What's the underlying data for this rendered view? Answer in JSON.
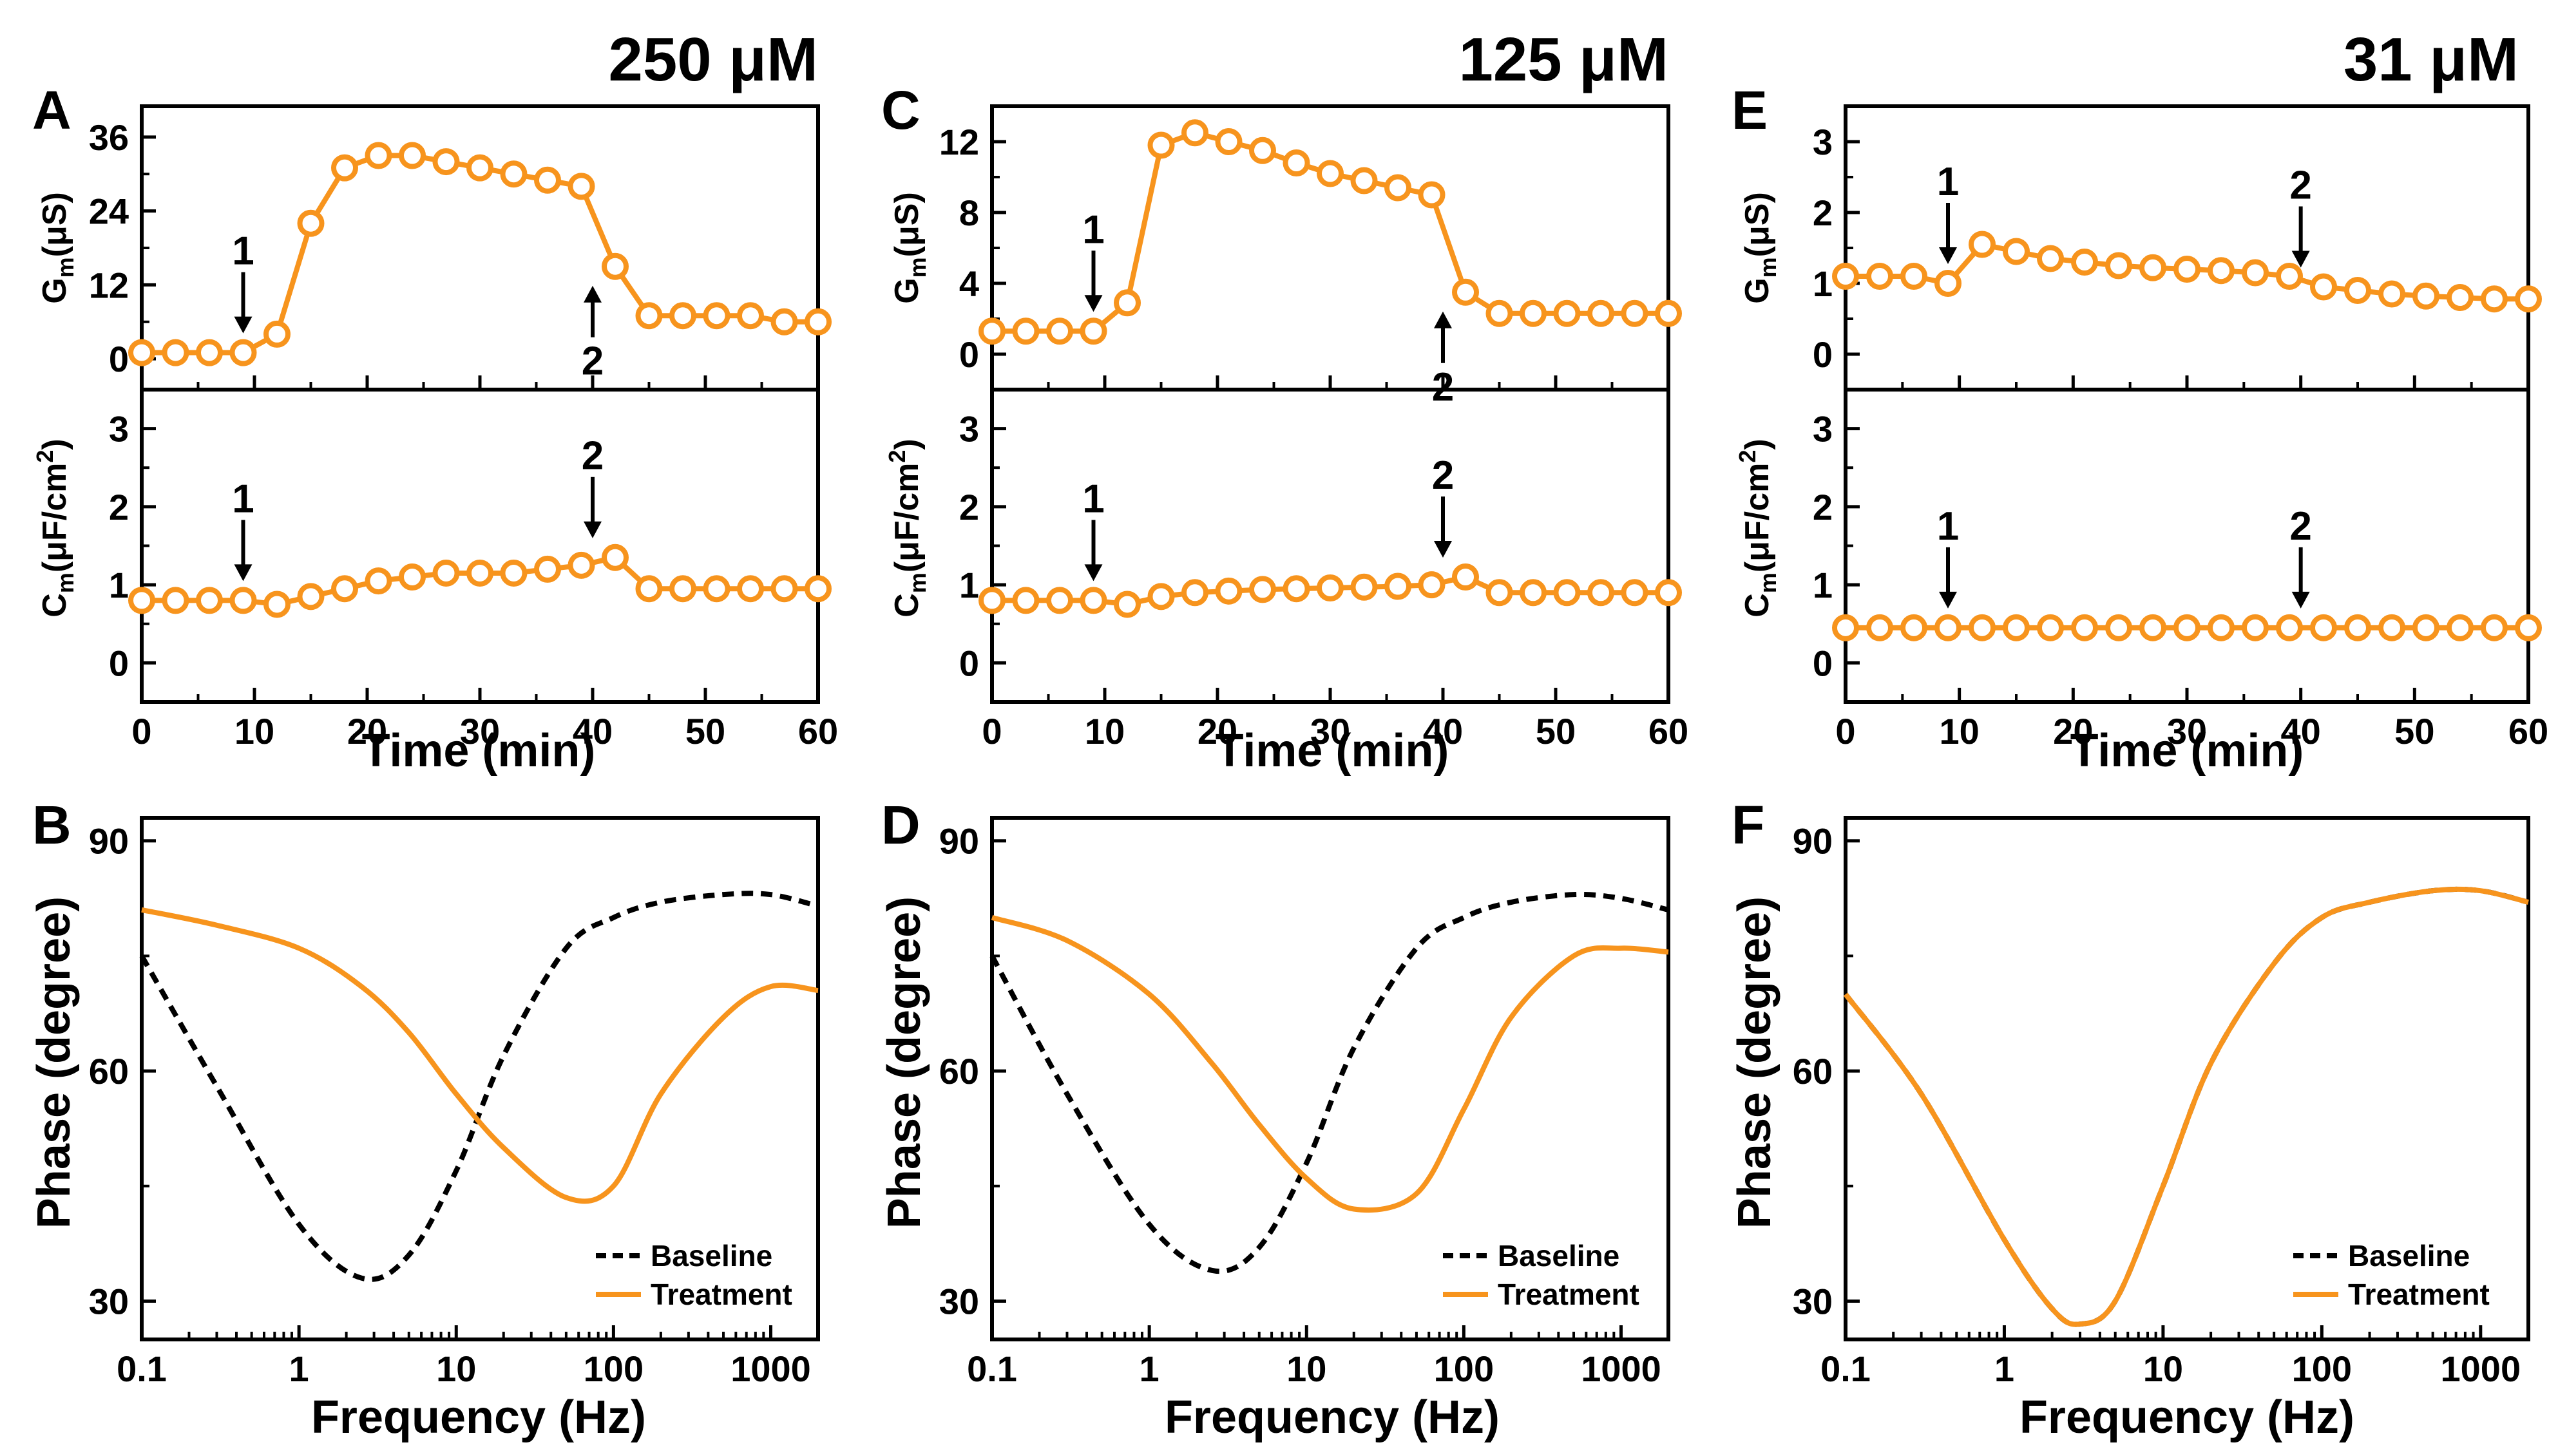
{
  "figure": {
    "panels": [
      {
        "letter": "A",
        "concentration": "250 μM"
      },
      {
        "letter": "C",
        "concentration": "125 μM"
      },
      {
        "letter": "E",
        "concentration": "31 μM"
      },
      {
        "letter": "B",
        "concentration": ""
      },
      {
        "letter": "D",
        "concentration": ""
      },
      {
        "letter": "F",
        "concentration": ""
      }
    ],
    "axis_labels": {
      "time": "Time (min)",
      "frequency": "Frequency (Hz)",
      "phase": "Phase (degree)",
      "gm_main": "G",
      "gm_sub": "m",
      "gm_unit": "(μS)",
      "cm_main": "C",
      "cm_sub": "m",
      "cm_unit": "(μF/cm",
      "cm_sup": "2",
      "cm_close": ")"
    },
    "legend": {
      "baseline": "Baseline",
      "treatment": "Treatment"
    },
    "event_markers": [
      "1",
      "2"
    ]
  },
  "chart_data": [
    {
      "id": "A-Gm",
      "type": "line",
      "title": "250 μM",
      "xlabel": "Time (min)",
      "ylabel": "Gm (μS)",
      "xlim": [
        0,
        60
      ],
      "ylim": [
        -5,
        41
      ],
      "xticks": [
        0,
        10,
        20,
        30,
        40,
        50,
        60
      ],
      "yticks": [
        0,
        12,
        24,
        36
      ],
      "x": [
        0,
        3,
        6,
        9,
        12,
        15,
        18,
        21,
        24,
        27,
        30,
        33,
        36,
        39,
        42,
        45,
        48,
        51,
        54,
        57,
        60
      ],
      "series": [
        {
          "name": "Gm",
          "values": [
            1,
            1,
            1,
            1,
            4,
            22,
            31,
            33,
            33,
            32,
            31,
            30,
            29,
            28,
            15,
            7,
            7,
            7,
            7,
            6,
            6
          ]
        }
      ],
      "markers": [
        {
          "label": "1",
          "x": 9,
          "dir": "down"
        },
        {
          "label": "2",
          "x": 40,
          "dir": "up"
        }
      ]
    },
    {
      "id": "A-Cm",
      "type": "line",
      "xlabel": "Time (min)",
      "ylabel": "Cm (μF/cm2)",
      "xlim": [
        0,
        60
      ],
      "ylim": [
        -0.5,
        3.5
      ],
      "xticks": [
        0,
        10,
        20,
        30,
        40,
        50,
        60
      ],
      "yticks": [
        0,
        1,
        2,
        3
      ],
      "x": [
        0,
        3,
        6,
        9,
        12,
        15,
        18,
        21,
        24,
        27,
        30,
        33,
        36,
        39,
        42,
        45,
        48,
        51,
        54,
        57,
        60
      ],
      "series": [
        {
          "name": "Cm",
          "values": [
            0.8,
            0.8,
            0.8,
            0.8,
            0.75,
            0.85,
            0.95,
            1.05,
            1.1,
            1.15,
            1.15,
            1.15,
            1.2,
            1.25,
            1.35,
            0.95,
            0.95,
            0.95,
            0.95,
            0.95,
            0.95
          ]
        }
      ],
      "markers": [
        {
          "label": "1",
          "x": 9,
          "dir": "down"
        },
        {
          "label": "2",
          "x": 40,
          "dir": "down"
        }
      ]
    },
    {
      "id": "C-Gm",
      "type": "line",
      "title": "125 μM",
      "xlabel": "Time (min)",
      "ylabel": "Gm (μS)",
      "xlim": [
        0,
        60
      ],
      "ylim": [
        -2,
        14
      ],
      "xticks": [
        0,
        10,
        20,
        30,
        40,
        50,
        60
      ],
      "yticks": [
        0,
        4,
        8,
        12
      ],
      "x": [
        0,
        3,
        6,
        9,
        12,
        15,
        18,
        21,
        24,
        27,
        30,
        33,
        36,
        39,
        42,
        45,
        48,
        51,
        54,
        57,
        60
      ],
      "series": [
        {
          "name": "Gm",
          "values": [
            1.3,
            1.3,
            1.3,
            1.3,
            2.9,
            11.8,
            12.5,
            12,
            11.5,
            10.8,
            10.2,
            9.8,
            9.4,
            9.0,
            3.5,
            2.3,
            2.3,
            2.3,
            2.3,
            2.3,
            2.3
          ]
        }
      ],
      "markers": [
        {
          "label": "1",
          "x": 9,
          "dir": "down"
        },
        {
          "label": "2",
          "x": 40,
          "dir": "up"
        }
      ]
    },
    {
      "id": "C-Cm",
      "type": "line",
      "xlabel": "Time (min)",
      "ylabel": "Cm (μF/cm2)",
      "xlim": [
        0,
        60
      ],
      "ylim": [
        -0.5,
        3.5
      ],
      "xticks": [
        0,
        10,
        20,
        30,
        40,
        50,
        60
      ],
      "yticks": [
        0,
        1,
        2,
        3
      ],
      "x": [
        0,
        3,
        6,
        9,
        12,
        15,
        18,
        21,
        24,
        27,
        30,
        33,
        36,
        39,
        42,
        45,
        48,
        51,
        54,
        57,
        60
      ],
      "series": [
        {
          "name": "Cm",
          "values": [
            0.8,
            0.8,
            0.8,
            0.8,
            0.75,
            0.85,
            0.9,
            0.92,
            0.94,
            0.95,
            0.96,
            0.97,
            0.98,
            1.0,
            1.1,
            0.9,
            0.9,
            0.9,
            0.9,
            0.9,
            0.9
          ]
        }
      ],
      "markers": [
        {
          "label": "1",
          "x": 9,
          "dir": "down"
        },
        {
          "label": "2",
          "x": 40,
          "dir": "down"
        }
      ]
    },
    {
      "id": "E-Gm",
      "type": "line",
      "title": "31 μM",
      "xlabel": "Time (min)",
      "ylabel": "Gm (μS)",
      "xlim": [
        0,
        60
      ],
      "ylim": [
        -0.5,
        3.5
      ],
      "xticks": [
        0,
        10,
        20,
        30,
        40,
        50,
        60
      ],
      "yticks": [
        0,
        1,
        2,
        3
      ],
      "x": [
        0,
        3,
        6,
        9,
        12,
        15,
        18,
        21,
        24,
        27,
        30,
        33,
        36,
        39,
        42,
        45,
        48,
        51,
        54,
        57,
        60
      ],
      "series": [
        {
          "name": "Gm",
          "values": [
            1.1,
            1.1,
            1.1,
            1.0,
            1.55,
            1.45,
            1.35,
            1.3,
            1.25,
            1.22,
            1.2,
            1.18,
            1.15,
            1.1,
            0.95,
            0.9,
            0.85,
            0.82,
            0.8,
            0.78,
            0.78
          ]
        }
      ],
      "markers": [
        {
          "label": "1",
          "x": 9,
          "dir": "down"
        },
        {
          "label": "2",
          "x": 40,
          "dir": "down"
        }
      ]
    },
    {
      "id": "E-Cm",
      "type": "line",
      "xlabel": "Time (min)",
      "ylabel": "Cm (μF/cm2)",
      "xlim": [
        0,
        60
      ],
      "ylim": [
        -0.5,
        3.5
      ],
      "xticks": [
        0,
        10,
        20,
        30,
        40,
        50,
        60
      ],
      "yticks": [
        0,
        1,
        2,
        3
      ],
      "x": [
        0,
        3,
        6,
        9,
        12,
        15,
        18,
        21,
        24,
        27,
        30,
        33,
        36,
        39,
        42,
        45,
        48,
        51,
        54,
        57,
        60
      ],
      "series": [
        {
          "name": "Cm",
          "values": [
            0.45,
            0.45,
            0.45,
            0.45,
            0.45,
            0.45,
            0.45,
            0.45,
            0.45,
            0.45,
            0.45,
            0.45,
            0.45,
            0.45,
            0.45,
            0.45,
            0.45,
            0.45,
            0.45,
            0.45,
            0.45
          ]
        }
      ],
      "markers": [
        {
          "label": "1",
          "x": 9,
          "dir": "down"
        },
        {
          "label": "2",
          "x": 40,
          "dir": "down"
        }
      ]
    },
    {
      "id": "B",
      "type": "line",
      "xlabel": "Frequency (Hz)",
      "ylabel": "Phase (degree)",
      "xscale": "log",
      "xlim": [
        0.1,
        2000
      ],
      "ylim": [
        25,
        93
      ],
      "xticks": [
        0.1,
        1,
        10,
        100,
        1000
      ],
      "xticklabels": [
        "0.1",
        "1",
        "10",
        "100",
        "1000"
      ],
      "yticks": [
        30,
        60,
        90
      ],
      "legend_position": "bottom-right",
      "x": [
        0.1,
        0.3,
        1,
        2.5,
        5,
        10,
        20,
        50,
        100,
        200,
        500,
        1000,
        2000
      ],
      "series": [
        {
          "name": "Baseline",
          "style": "dashed",
          "values": [
            75,
            58,
            40,
            33,
            36,
            47,
            62,
            76,
            80,
            82,
            83,
            83,
            81.5
          ]
        },
        {
          "name": "Treatment",
          "style": "solid",
          "values": [
            81,
            79,
            76,
            71,
            65,
            57,
            50,
            43.5,
            45,
            57,
            67,
            71,
            70.5
          ]
        }
      ]
    },
    {
      "id": "D",
      "type": "line",
      "xlabel": "Frequency (Hz)",
      "ylabel": "Phase (degree)",
      "xscale": "log",
      "xlim": [
        0.1,
        2000
      ],
      "ylim": [
        25,
        93
      ],
      "xticks": [
        0.1,
        1,
        10,
        100,
        1000
      ],
      "xticklabels": [
        "0.1",
        "1",
        "10",
        "100",
        "1000"
      ],
      "yticks": [
        30,
        60,
        90
      ],
      "legend_position": "bottom-right",
      "x": [
        0.1,
        0.3,
        1,
        2.5,
        5,
        10,
        20,
        50,
        100,
        200,
        500,
        1000,
        2000
      ],
      "series": [
        {
          "name": "Baseline",
          "style": "dashed",
          "values": [
            75,
            57,
            40,
            34,
            37,
            48,
            63,
            76,
            80,
            82,
            83,
            82.5,
            81
          ]
        },
        {
          "name": "Treatment",
          "style": "solid",
          "values": [
            80,
            77,
            70,
            61,
            53,
            46,
            42,
            44,
            55,
            67,
            75,
            76,
            75.5
          ]
        }
      ]
    },
    {
      "id": "F",
      "type": "line",
      "xlabel": "Frequency (Hz)",
      "ylabel": "Phase (degree)",
      "xscale": "log",
      "xlim": [
        0.1,
        2000
      ],
      "ylim": [
        25,
        93
      ],
      "xticks": [
        0.1,
        1,
        10,
        100,
        1000
      ],
      "xticklabels": [
        "0.1",
        "1",
        "10",
        "100",
        "1000"
      ],
      "yticks": [
        30,
        60,
        90
      ],
      "legend_position": "bottom-right",
      "x": [
        0.1,
        0.3,
        1,
        2,
        3,
        5,
        10,
        20,
        50,
        100,
        200,
        500,
        1000,
        2000
      ],
      "series": [
        {
          "name": "Baseline",
          "style": "dashed",
          "values": [
            70,
            57,
            38,
            29,
            27,
            30,
            45,
            61,
            74,
            80,
            82,
            83.5,
            83.5,
            82
          ]
        },
        {
          "name": "Treatment",
          "style": "solid",
          "values": [
            70,
            57,
            38,
            29,
            27,
            30,
            45,
            61,
            74,
            80,
            82,
            83.5,
            83.5,
            82
          ]
        }
      ]
    }
  ]
}
